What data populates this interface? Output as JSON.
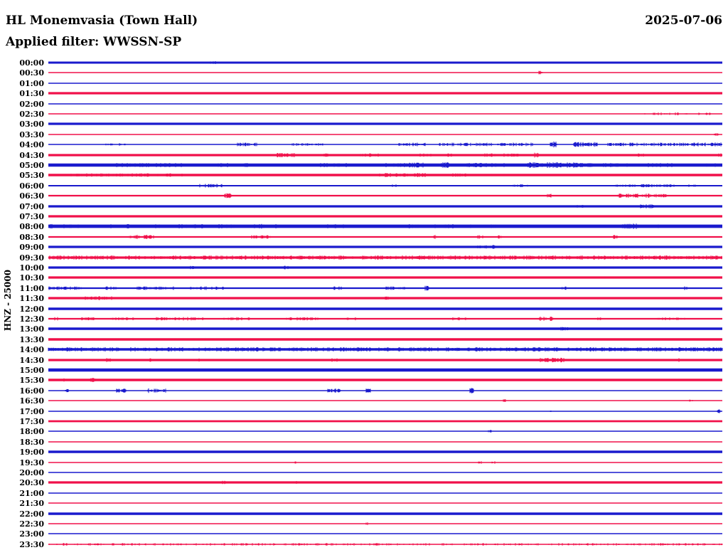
{
  "header": {
    "station_title": "HL Monemvasia (Town Hall)",
    "date": "2025-07-06",
    "filter_label": "Applied filter: WWSSN-SP"
  },
  "axis": {
    "channel_label": "HNZ - 25000"
  },
  "colors": {
    "blue": "#1a1acd",
    "red": "#f0104a",
    "text": "#000000",
    "background": "#ffffff"
  },
  "chart_data": {
    "type": "line",
    "subtype": "helicorder-seismogram",
    "title": "HL Monemvasia (Town Hall)",
    "date": "2025-07-06",
    "filter": "WWSSN-SP",
    "channel": "HNZ",
    "scale": 25000,
    "row_duration_minutes": 30,
    "legend_position": "none",
    "grid": false,
    "x_axis": "time within each 30-minute row (left tick label = row start time)",
    "y_axis": "ground velocity trace amplitude (qualitative, alternating blue/red rows)",
    "rows": [
      {
        "time": "00:00",
        "color": "blue",
        "amp": 1.5,
        "events": [
          [
            0.24,
            0.25,
            2,
            0.5
          ],
          [
            0.29,
            0.295,
            2,
            0.5
          ]
        ]
      },
      {
        "time": "00:30",
        "color": "red",
        "amp": 0.75,
        "events": [
          [
            0.728,
            0.734,
            2.5,
            0.9
          ]
        ]
      },
      {
        "time": "01:00",
        "color": "blue",
        "amp": 0.75,
        "events": []
      },
      {
        "time": "01:30",
        "color": "red",
        "amp": 1.6,
        "events": []
      },
      {
        "time": "02:00",
        "color": "blue",
        "amp": 0.75,
        "events": []
      },
      {
        "time": "02:30",
        "color": "red",
        "amp": 0.75,
        "events": [
          [
            0.885,
            0.985,
            2,
            0.35
          ]
        ]
      },
      {
        "time": "03:00",
        "color": "blue",
        "amp": 1.6,
        "events": []
      },
      {
        "time": "03:30",
        "color": "red",
        "amp": 0.75,
        "events": [
          [
            0.988,
            0.994,
            2,
            0.8
          ]
        ]
      },
      {
        "time": "04:00",
        "color": "blue",
        "amp": 0.75,
        "events": [
          [
            0.085,
            0.095,
            2,
            0.6
          ],
          [
            0.105,
            0.115,
            2,
            0.6
          ],
          [
            0.28,
            0.31,
            2.5,
            0.7
          ],
          [
            0.36,
            0.41,
            2,
            0.5
          ],
          [
            0.52,
            0.56,
            2.5,
            0.6
          ],
          [
            0.58,
            0.72,
            2.5,
            0.55
          ],
          [
            0.745,
            0.755,
            4.5,
            0.9
          ],
          [
            0.78,
            0.815,
            3.5,
            0.9
          ],
          [
            0.83,
            0.95,
            2.5,
            0.6
          ],
          [
            0.955,
            1.0,
            3,
            0.8
          ]
        ]
      },
      {
        "time": "04:30",
        "color": "red",
        "amp": 1.6,
        "events": [
          [
            0.335,
            0.365,
            3,
            0.6
          ],
          [
            0.405,
            0.415,
            2.5,
            0.7
          ],
          [
            0.46,
            0.49,
            2.5,
            0.5
          ],
          [
            0.55,
            0.57,
            2.5,
            0.5
          ],
          [
            0.59,
            0.6,
            2.5,
            0.6
          ],
          [
            0.648,
            0.7,
            2.5,
            0.5
          ],
          [
            0.722,
            0.728,
            4,
            0.9
          ],
          [
            0.875,
            0.885,
            2.5,
            0.6
          ],
          [
            0.962,
            0.968,
            2.5,
            0.7
          ],
          [
            0.995,
            1.0,
            2.5,
            0.8
          ]
        ]
      },
      {
        "time": "05:00",
        "color": "blue",
        "amp": 2.2,
        "events": [
          [
            0.1,
            0.2,
            3,
            0.35
          ],
          [
            0.25,
            0.3,
            3,
            0.3
          ],
          [
            0.4,
            0.45,
            3,
            0.4
          ],
          [
            0.5,
            0.56,
            3.5,
            0.5
          ],
          [
            0.583,
            0.595,
            4,
            0.9
          ],
          [
            0.62,
            0.68,
            3,
            0.5
          ],
          [
            0.71,
            0.795,
            4,
            0.85
          ],
          [
            0.8,
            0.86,
            3,
            0.5
          ],
          [
            0.89,
            0.93,
            3,
            0.5
          ],
          [
            0.96,
            0.99,
            3,
            0.5
          ]
        ]
      },
      {
        "time": "05:30",
        "color": "red",
        "amp": 1.7,
        "events": [
          [
            0.03,
            0.2,
            2.5,
            0.4
          ],
          [
            0.49,
            0.56,
            3,
            0.6
          ],
          [
            0.6,
            0.62,
            2.5,
            0.5
          ]
        ]
      },
      {
        "time": "06:00",
        "color": "blue",
        "amp": 1.0,
        "events": [
          [
            0.225,
            0.26,
            2.5,
            0.6
          ],
          [
            0.51,
            0.52,
            2,
            0.6
          ],
          [
            0.69,
            0.72,
            2,
            0.4
          ],
          [
            0.835,
            0.87,
            2,
            0.5
          ],
          [
            0.88,
            0.93,
            2.2,
            0.5
          ],
          [
            0.95,
            0.96,
            2,
            0.5
          ]
        ]
      },
      {
        "time": "06:30",
        "color": "red",
        "amp": 1.1,
        "events": [
          [
            0.262,
            0.272,
            3.5,
            0.9
          ],
          [
            0.74,
            0.746,
            3,
            0.8
          ],
          [
            0.845,
            0.9,
            3,
            0.8
          ],
          [
            0.9,
            0.917,
            2.5,
            0.6
          ]
        ]
      },
      {
        "time": "07:00",
        "color": "blue",
        "amp": 1.6,
        "events": [
          [
            0.78,
            0.8,
            2.5,
            0.5
          ],
          [
            0.878,
            0.9,
            3,
            0.8
          ]
        ]
      },
      {
        "time": "07:30",
        "color": "red",
        "amp": 1.6,
        "events": [
          [
            0.18,
            0.19,
            2.2,
            0.5
          ]
        ]
      },
      {
        "time": "08:00",
        "color": "blue",
        "amp": 2.4,
        "events": [
          [
            0.0,
            0.06,
            3.2,
            0.6
          ],
          [
            0.08,
            0.12,
            3,
            0.5
          ],
          [
            0.155,
            0.165,
            3,
            0.6
          ],
          [
            0.19,
            0.23,
            3,
            0.5
          ],
          [
            0.25,
            0.28,
            3,
            0.5
          ],
          [
            0.3,
            0.34,
            3.2,
            0.6
          ],
          [
            0.41,
            0.44,
            3,
            0.5
          ],
          [
            0.52,
            0.55,
            3,
            0.5
          ],
          [
            0.565,
            0.6,
            3,
            0.5
          ],
          [
            0.625,
            0.635,
            3,
            0.5
          ],
          [
            0.655,
            0.665,
            3,
            0.5
          ],
          [
            0.85,
            0.875,
            3.8,
            0.8
          ],
          [
            0.905,
            0.912,
            3.2,
            0.6
          ]
        ]
      },
      {
        "time": "08:30",
        "color": "red",
        "amp": 1.1,
        "events": [
          [
            0.12,
            0.16,
            3,
            0.7
          ],
          [
            0.3,
            0.33,
            2.5,
            0.6
          ],
          [
            0.572,
            0.578,
            3,
            0.8
          ],
          [
            0.635,
            0.645,
            2.5,
            0.6
          ],
          [
            0.668,
            0.673,
            2.5,
            0.7
          ],
          [
            0.838,
            0.845,
            2.8,
            0.8
          ]
        ]
      },
      {
        "time": "09:00",
        "color": "blue",
        "amp": 1.6,
        "events": [
          [
            0.635,
            0.665,
            2.8,
            0.7
          ]
        ]
      },
      {
        "time": "09:30",
        "color": "red",
        "amp": 1.6,
        "events": [
          [
            0.0,
            1.0,
            3,
            0.55
          ]
        ]
      },
      {
        "time": "10:00",
        "color": "blue",
        "amp": 1.6,
        "events": [
          [
            0.21,
            0.216,
            2.5,
            0.7
          ],
          [
            0.35,
            0.356,
            2.8,
            0.8
          ],
          [
            0.7,
            0.706,
            2.2,
            0.6
          ]
        ]
      },
      {
        "time": "10:30",
        "color": "red",
        "amp": 1.6,
        "events": []
      },
      {
        "time": "11:00",
        "color": "blue",
        "amp": 1.1,
        "events": [
          [
            0.0,
            0.05,
            2.5,
            0.6
          ],
          [
            0.085,
            0.1,
            2.5,
            0.5
          ],
          [
            0.13,
            0.19,
            2.5,
            0.5
          ],
          [
            0.21,
            0.26,
            2.5,
            0.45
          ],
          [
            0.42,
            0.44,
            2.5,
            0.5
          ],
          [
            0.5,
            0.53,
            2.5,
            0.5
          ],
          [
            0.558,
            0.565,
            3.5,
            0.9
          ],
          [
            0.76,
            0.77,
            2.5,
            0.5
          ],
          [
            0.942,
            0.948,
            2.5,
            0.7
          ]
        ]
      },
      {
        "time": "11:30",
        "color": "red",
        "amp": 1.6,
        "events": [
          [
            0.055,
            0.095,
            2.8,
            0.7
          ],
          [
            0.5,
            0.506,
            2.5,
            0.6
          ]
        ]
      },
      {
        "time": "12:00",
        "color": "blue",
        "amp": 1.7,
        "events": []
      },
      {
        "time": "12:30",
        "color": "red",
        "amp": 1.1,
        "events": [
          [
            0.01,
            0.016,
            2.5,
            0.6
          ],
          [
            0.05,
            0.07,
            2.2,
            0.5
          ],
          [
            0.09,
            0.13,
            2.2,
            0.5
          ],
          [
            0.16,
            0.23,
            2.5,
            0.5
          ],
          [
            0.26,
            0.3,
            2.2,
            0.5
          ],
          [
            0.35,
            0.4,
            2.2,
            0.5
          ],
          [
            0.44,
            0.46,
            2.2,
            0.5
          ],
          [
            0.6,
            0.62,
            2.2,
            0.5
          ],
          [
            0.728,
            0.75,
            3,
            0.7
          ],
          [
            0.815,
            0.82,
            2.2,
            0.6
          ],
          [
            0.9,
            0.96,
            2,
            0.4
          ]
        ]
      },
      {
        "time": "13:00",
        "color": "blue",
        "amp": 1.7,
        "events": [
          [
            0.758,
            0.772,
            2.5,
            0.6
          ]
        ]
      },
      {
        "time": "13:30",
        "color": "red",
        "amp": 1.7,
        "events": []
      },
      {
        "time": "14:00",
        "color": "blue",
        "amp": 1.7,
        "events": [
          [
            0.0,
            1.0,
            3,
            0.6
          ]
        ]
      },
      {
        "time": "14:30",
        "color": "red",
        "amp": 1.6,
        "events": [
          [
            0.079,
            0.094,
            3,
            0.7
          ],
          [
            0.148,
            0.153,
            2.5,
            0.6
          ],
          [
            0.222,
            0.227,
            2.5,
            0.6
          ],
          [
            0.42,
            0.43,
            2.8,
            0.6
          ],
          [
            0.73,
            0.765,
            3.2,
            0.8
          ],
          [
            0.795,
            0.8,
            2.5,
            0.6
          ],
          [
            0.935,
            0.94,
            2.8,
            0.7
          ]
        ]
      },
      {
        "time": "15:00",
        "color": "blue",
        "amp": 2.2,
        "events": []
      },
      {
        "time": "15:30",
        "color": "red",
        "amp": 1.7,
        "events": [
          [
            0.02,
            0.024,
            2.5,
            0.7
          ],
          [
            0.062,
            0.07,
            3,
            0.8
          ]
        ]
      },
      {
        "time": "16:00",
        "color": "blue",
        "amp": 0.8,
        "events": [
          [
            0.025,
            0.03,
            2.5,
            0.7
          ],
          [
            0.1,
            0.115,
            3,
            0.8
          ],
          [
            0.148,
            0.175,
            3.2,
            0.8
          ],
          [
            0.415,
            0.435,
            3,
            0.9
          ],
          [
            0.47,
            0.478,
            3,
            0.8
          ],
          [
            0.625,
            0.631,
            4,
            0.9
          ]
        ]
      },
      {
        "time": "16:30",
        "color": "red",
        "amp": 0.7,
        "events": [
          [
            0.675,
            0.679,
            2,
            0.7
          ],
          [
            0.95,
            0.956,
            2.2,
            0.7
          ]
        ]
      },
      {
        "time": "17:00",
        "color": "blue",
        "amp": 0.8,
        "events": [
          [
            0.745,
            0.749,
            2,
            0.6
          ],
          [
            0.993,
            0.998,
            2.5,
            0.8
          ]
        ]
      },
      {
        "time": "17:30",
        "color": "red",
        "amp": 1.4,
        "events": []
      },
      {
        "time": "18:00",
        "color": "blue",
        "amp": 0.8,
        "events": [
          [
            0.653,
            0.658,
            2,
            0.7
          ]
        ]
      },
      {
        "time": "18:30",
        "color": "red",
        "amp": 0.8,
        "events": []
      },
      {
        "time": "19:00",
        "color": "blue",
        "amp": 1.7,
        "events": []
      },
      {
        "time": "19:30",
        "color": "red",
        "amp": 0.75,
        "events": [
          [
            0.365,
            0.369,
            2,
            0.7
          ],
          [
            0.638,
            0.643,
            2,
            0.7
          ],
          [
            0.658,
            0.663,
            2,
            0.7
          ]
        ]
      },
      {
        "time": "20:00",
        "color": "blue",
        "amp": 0.75,
        "events": []
      },
      {
        "time": "20:30",
        "color": "red",
        "amp": 1.6,
        "events": [
          [
            0.142,
            0.147,
            2.2,
            0.6
          ],
          [
            0.258,
            0.263,
            2.2,
            0.6
          ],
          [
            0.3,
            0.305,
            2.2,
            0.6
          ],
          [
            0.364,
            0.369,
            2.2,
            0.6
          ]
        ]
      },
      {
        "time": "21:00",
        "color": "blue",
        "amp": 0.75,
        "events": [
          [
            0.268,
            0.273,
            2,
            0.6
          ]
        ]
      },
      {
        "time": "21:30",
        "color": "red",
        "amp": 0.75,
        "events": []
      },
      {
        "time": "22:00",
        "color": "blue",
        "amp": 1.7,
        "events": []
      },
      {
        "time": "22:30",
        "color": "red",
        "amp": 0.75,
        "events": [
          [
            0.47,
            0.475,
            2,
            0.7
          ]
        ]
      },
      {
        "time": "23:00",
        "color": "blue",
        "amp": 0.75,
        "events": []
      },
      {
        "time": "23:30",
        "color": "red",
        "amp": 0.75,
        "events": [
          [
            0.0,
            1.0,
            1.8,
            0.22
          ]
        ]
      }
    ]
  }
}
